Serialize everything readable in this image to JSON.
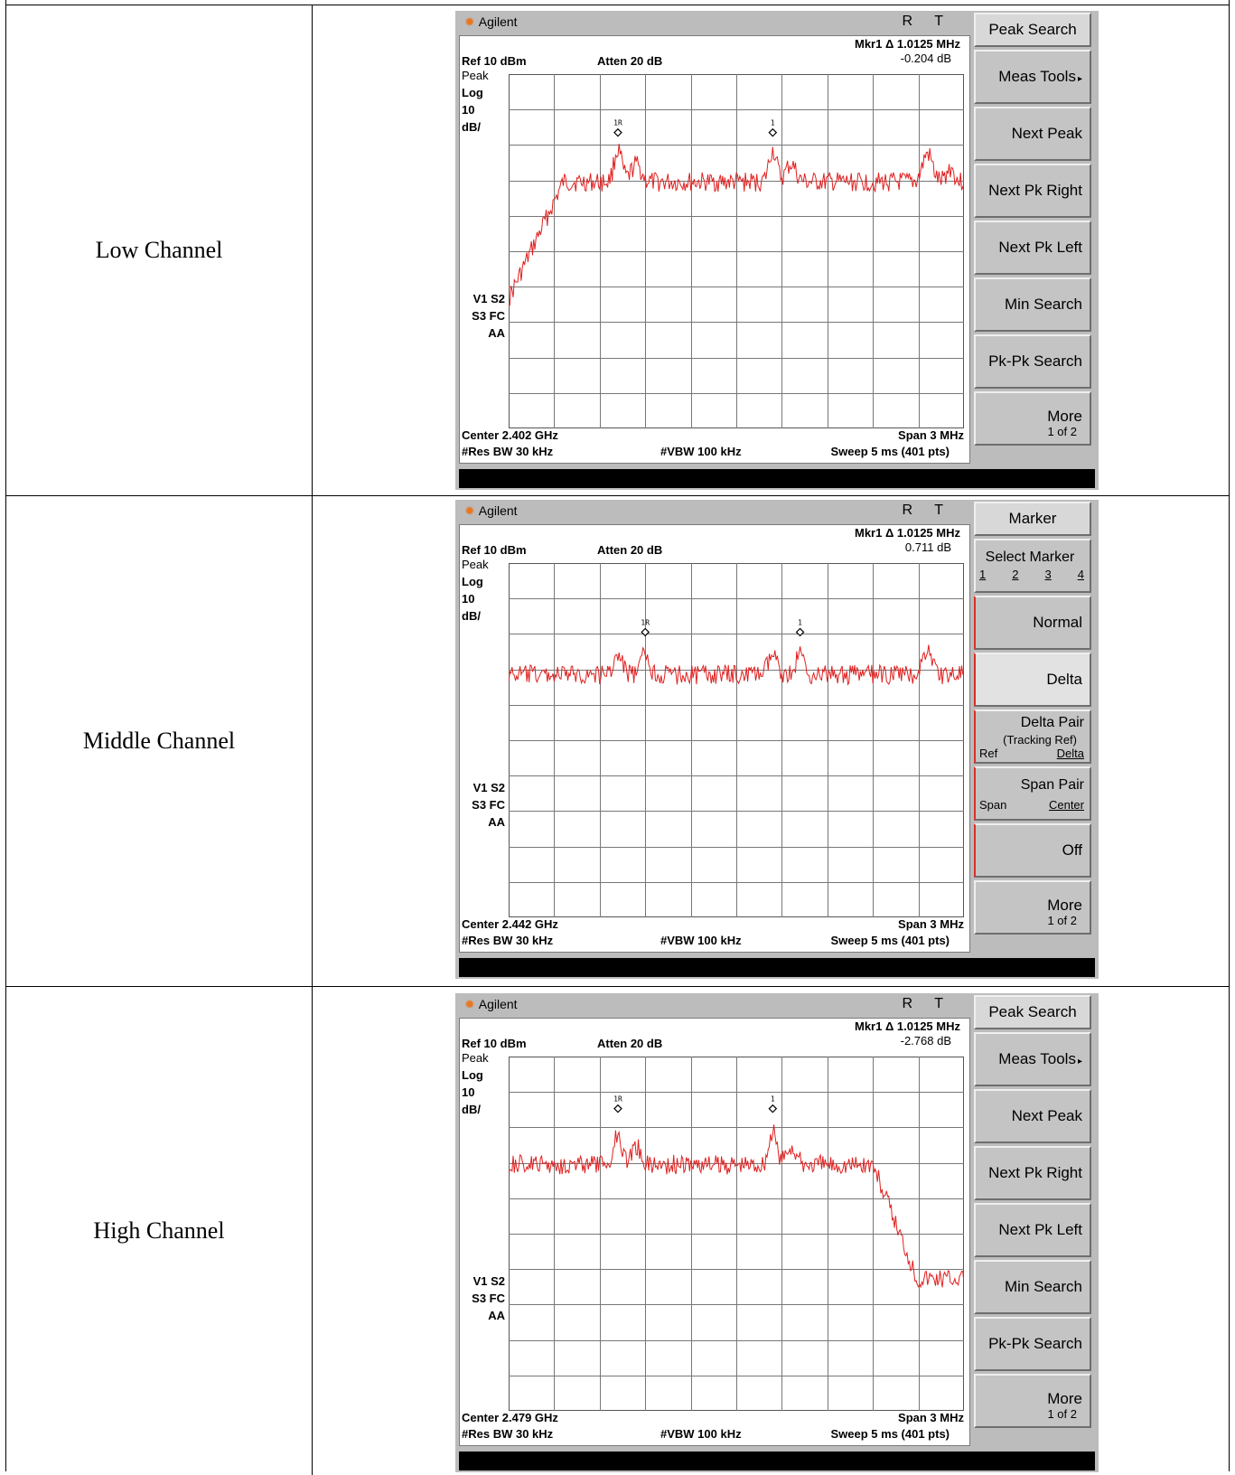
{
  "rows": [
    {
      "channel_label": "Low Channel",
      "analyzer": {
        "brand": "Agilent",
        "rt": "R T",
        "marker_readout": "Mkr1 Δ  1.0125 MHz",
        "marker_value": "-0.204 dB",
        "ref": "Ref 10 dBm",
        "atten": "Atten 20 dB",
        "scale_lines": [
          "Peak",
          "Log",
          "10",
          "dB/"
        ],
        "status_lines": [
          "V1  S2",
          "S3  FC",
          "AA"
        ],
        "center": "Center 2.402 GHz",
        "span": "Span 3 MHz",
        "res_bw": "#Res BW 30 kHz",
        "vbw": "#VBW 100 kHz",
        "sweep": "Sweep 5 ms (401 pts)",
        "marker_labels": [
          "1R",
          "1"
        ],
        "softkeys": [
          {
            "label": "Peak Search",
            "type": "head"
          },
          {
            "label": "Meas Tools",
            "arrow": "▸"
          },
          {
            "label": "Next Peak"
          },
          {
            "label": "Next Pk Right"
          },
          {
            "label": "Next Pk Left"
          },
          {
            "label": "Min Search"
          },
          {
            "label": "Pk-Pk Search"
          },
          {
            "label": "More",
            "sub": "1 of 2"
          }
        ],
        "trace_color": "#e02020",
        "trace_shape": "low"
      }
    },
    {
      "channel_label": "Middle Channel",
      "analyzer": {
        "brand": "Agilent",
        "rt": "R T",
        "marker_readout": "Mkr1 Δ  1.0125 MHz",
        "marker_value": "0.711 dB",
        "ref": "Ref 10 dBm",
        "atten": "Atten 20 dB",
        "scale_lines": [
          "Peak",
          "Log",
          "10",
          "dB/"
        ],
        "status_lines": [
          "V1  S2",
          "S3  FC",
          "AA"
        ],
        "center": "Center 2.442 GHz",
        "span": "Span 3 MHz",
        "res_bw": "#Res BW 30 kHz",
        "vbw": "#VBW 100 kHz",
        "sweep": "Sweep 5 ms (401 pts)",
        "marker_labels": [
          "1R",
          "1"
        ],
        "softkeys": [
          {
            "label": "Marker",
            "type": "head"
          },
          {
            "label": "Select Marker",
            "options": [
              "1",
              "2",
              "3",
              "4"
            ]
          },
          {
            "label": "Normal",
            "redbar": true
          },
          {
            "label": "Delta",
            "pressed": true,
            "redbar": true
          },
          {
            "label": "Delta Pair",
            "note": "(Tracking Ref)",
            "left": "Ref",
            "right": "Delta",
            "redbar": true
          },
          {
            "label": "Span Pair",
            "left": "Span",
            "right": "Center",
            "redbar": true
          },
          {
            "label": "Off",
            "redbar": true
          },
          {
            "label": "More",
            "sub": "1 of 2"
          }
        ],
        "trace_color": "#e02020",
        "trace_shape": "mid"
      }
    },
    {
      "channel_label": "High Channel",
      "analyzer": {
        "brand": "Agilent",
        "rt": "R T",
        "marker_readout": "Mkr1 Δ  1.0125 MHz",
        "marker_value": "-2.768 dB",
        "ref": "Ref 10 dBm",
        "atten": "Atten 20 dB",
        "scale_lines": [
          "Peak",
          "Log",
          "10",
          "dB/"
        ],
        "status_lines": [
          "V1  S2",
          "S3  FC",
          "AA"
        ],
        "center": "Center 2.479 GHz",
        "span": "Span 3 MHz",
        "res_bw": "#Res BW 30 kHz",
        "vbw": "#VBW 100 kHz",
        "sweep": "Sweep 5 ms (401 pts)",
        "marker_labels": [
          "1R",
          "1"
        ],
        "softkeys": [
          {
            "label": "Peak Search",
            "type": "head"
          },
          {
            "label": "Meas Tools",
            "arrow": "▸"
          },
          {
            "label": "Next Peak"
          },
          {
            "label": "Next Pk Right"
          },
          {
            "label": "Next Pk Left"
          },
          {
            "label": "Min Search"
          },
          {
            "label": "Pk-Pk Search"
          },
          {
            "label": "More",
            "sub": "1 of 2"
          }
        ],
        "trace_color": "#e02020",
        "trace_shape": "high"
      }
    }
  ],
  "icons": {
    "brand_icon": "agilent-starburst-icon"
  }
}
